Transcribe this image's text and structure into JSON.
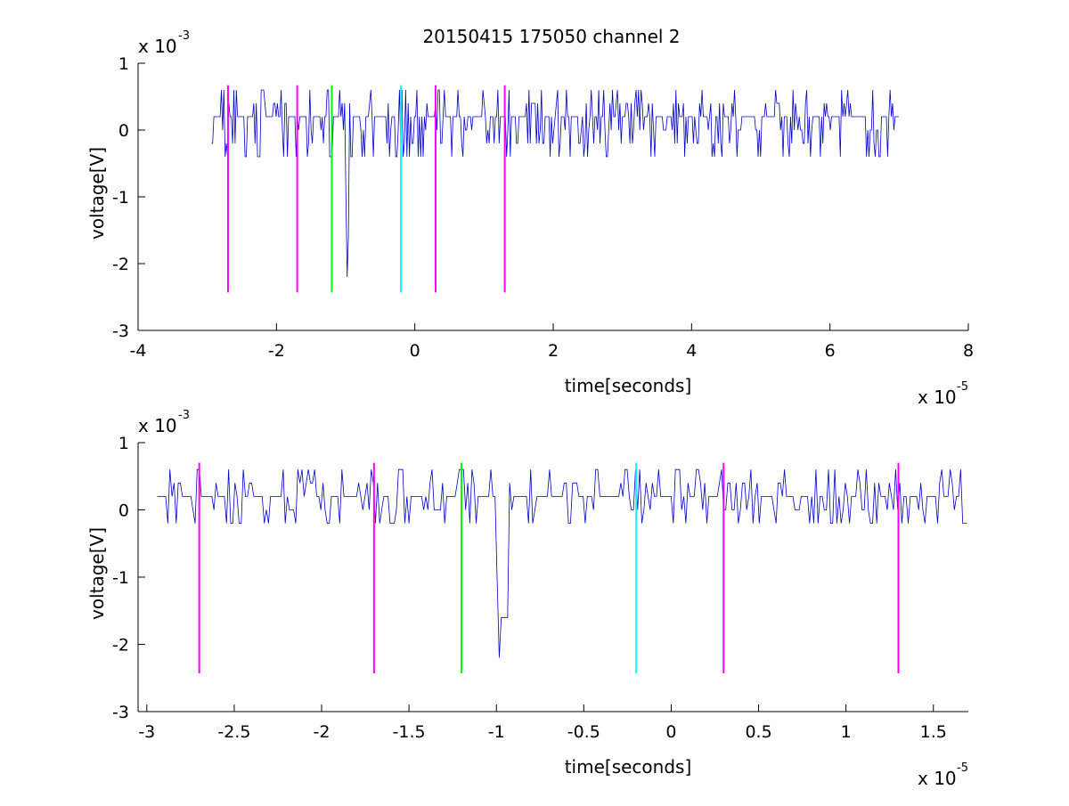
{
  "title": "20150415 175050 channel 2",
  "chart_data": [
    {
      "type": "line",
      "title": "20150415 175050 channel 2",
      "xlabel": "time[seconds]",
      "ylabel": "voltage[V]",
      "x_exponent": "x 10",
      "x_exponent_power": "-5",
      "y_exponent": "x 10",
      "y_exponent_power": "-3",
      "x_unit_scale": 1e-05,
      "y_unit_scale": 0.001,
      "xlim": [
        -4,
        8
      ],
      "ylim": [
        -3,
        1
      ],
      "xticks": [
        -4,
        -2,
        0,
        2,
        4,
        6,
        8
      ],
      "xtick_labels": [
        "-4",
        "-2",
        "0",
        "2",
        "4",
        "6",
        "8"
      ],
      "yticks": [
        -3,
        -2,
        -1,
        0,
        1
      ],
      "ytick_labels": [
        "-3",
        "-2",
        "-1",
        "0",
        "1"
      ],
      "grid": false,
      "series": [
        {
          "color": "#0000cc",
          "x_range": [
            -2.94,
            7.0
          ],
          "baseline": 0.2,
          "levels": [
            0.6,
            0.4,
            0.2,
            0.0,
            -0.2,
            -0.4
          ],
          "spike": {
            "x": -0.98,
            "values": [
              -1.0,
              -2.2,
              -1.6
            ]
          }
        }
      ],
      "markers": [
        {
          "x": -2.7,
          "y0": -2.43,
          "y1": 0.67,
          "color": "#ff00ff"
        },
        {
          "x": -1.7,
          "y0": -2.43,
          "y1": 0.67,
          "color": "#ff00ff"
        },
        {
          "x": -1.2,
          "y0": -2.43,
          "y1": 0.67,
          "color": "#00ff00"
        },
        {
          "x": -0.2,
          "y0": -2.43,
          "y1": 0.67,
          "color": "#00ffff"
        },
        {
          "x": 0.3,
          "y0": -2.43,
          "y1": 0.67,
          "color": "#ff00ff"
        },
        {
          "x": 1.3,
          "y0": -2.43,
          "y1": 0.67,
          "color": "#ff00ff"
        }
      ]
    },
    {
      "type": "line",
      "xlabel": "time[seconds]",
      "ylabel": "voltage[V]",
      "x_exponent": "x 10",
      "x_exponent_power": "-5",
      "y_exponent": "x 10",
      "y_exponent_power": "-3",
      "x_unit_scale": 1e-05,
      "y_unit_scale": 0.001,
      "xlim": [
        -3.05,
        1.7
      ],
      "ylim": [
        -3,
        1
      ],
      "xticks": [
        -3,
        -2.5,
        -2,
        -1.5,
        -1,
        -0.5,
        0,
        0.5,
        1,
        1.5
      ],
      "xtick_labels": [
        "-3",
        "-2.5",
        "-2",
        "-1.5",
        "-1",
        "-0.5",
        "0",
        "0.5",
        "1",
        "1.5"
      ],
      "yticks": [
        -3,
        -2,
        -1,
        0,
        1
      ],
      "ytick_labels": [
        "-3",
        "-2",
        "-1",
        "0",
        "1"
      ],
      "grid": false,
      "series": [
        {
          "color": "#0000cc",
          "x_range": [
            -2.94,
            1.7
          ],
          "baseline": 0.2,
          "levels": [
            0.6,
            0.4,
            0.2,
            0.0,
            -0.2
          ],
          "spike": {
            "x": -0.98,
            "values": [
              -1.0,
              -2.2,
              -1.6
            ]
          }
        }
      ],
      "markers": [
        {
          "x": -2.7,
          "y0": -2.43,
          "y1": 0.7,
          "color": "#ff00ff"
        },
        {
          "x": -1.7,
          "y0": -2.43,
          "y1": 0.7,
          "color": "#ff00ff"
        },
        {
          "x": -1.2,
          "y0": -2.43,
          "y1": 0.7,
          "color": "#00ff00"
        },
        {
          "x": -0.2,
          "y0": -2.43,
          "y1": 0.7,
          "color": "#00ffff"
        },
        {
          "x": 0.3,
          "y0": -2.43,
          "y1": 0.7,
          "color": "#ff00ff"
        },
        {
          "x": 1.3,
          "y0": -2.43,
          "y1": 0.7,
          "color": "#ff00ff"
        }
      ]
    }
  ]
}
